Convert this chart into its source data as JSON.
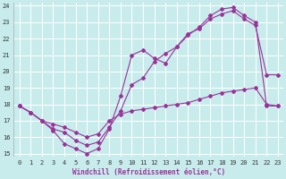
{
  "title": "",
  "xlabel": "Windchill (Refroidissement éolien,°C)",
  "ylabel": "",
  "xlim": [
    -0.5,
    23.5
  ],
  "ylim": [
    14.8,
    24.2
  ],
  "yticks": [
    15,
    16,
    17,
    18,
    19,
    20,
    21,
    22,
    23,
    24
  ],
  "xticks": [
    0,
    1,
    2,
    3,
    4,
    5,
    6,
    7,
    8,
    9,
    10,
    11,
    12,
    13,
    14,
    15,
    16,
    17,
    18,
    19,
    20,
    21,
    22,
    23
  ],
  "bg_color": "#c8ecec",
  "grid_color": "#ffffff",
  "line_color": "#993399",
  "line1_x": [
    0,
    1,
    2,
    3,
    4,
    5,
    6,
    7,
    8,
    9,
    10,
    11,
    12,
    13,
    14,
    15,
    16,
    17,
    18,
    19,
    20,
    21,
    22,
    23
  ],
  "line1_y": [
    17.9,
    17.5,
    17.0,
    16.4,
    15.6,
    15.3,
    15.0,
    15.3,
    16.5,
    18.5,
    21.0,
    21.3,
    20.8,
    20.5,
    21.5,
    22.3,
    22.6,
    23.2,
    23.5,
    23.7,
    23.2,
    22.8,
    19.8,
    19.8
  ],
  "line2_x": [
    0,
    1,
    2,
    3,
    4,
    5,
    6,
    7,
    8,
    9,
    10,
    11,
    12,
    13,
    14,
    15,
    16,
    17,
    18,
    19,
    20,
    21,
    22,
    23
  ],
  "line2_y": [
    17.9,
    17.5,
    17.0,
    16.5,
    16.3,
    15.8,
    15.5,
    15.7,
    16.6,
    17.6,
    19.2,
    19.6,
    20.6,
    21.1,
    21.5,
    22.2,
    22.7,
    23.4,
    23.8,
    23.9,
    23.4,
    23.0,
    17.9,
    17.9
  ],
  "line3_x": [
    0,
    1,
    2,
    3,
    4,
    5,
    6,
    7,
    8,
    9,
    10,
    11,
    12,
    13,
    14,
    15,
    16,
    17,
    18,
    19,
    20,
    21,
    22,
    23
  ],
  "line3_y": [
    17.9,
    17.5,
    17.0,
    16.8,
    16.6,
    16.3,
    16.0,
    16.2,
    17.0,
    17.4,
    17.6,
    17.7,
    17.8,
    17.9,
    18.0,
    18.1,
    18.3,
    18.5,
    18.7,
    18.8,
    18.9,
    19.0,
    18.0,
    17.9
  ],
  "tick_fontsize": 5,
  "xlabel_fontsize": 5.5,
  "marker_size": 2.0,
  "line_width": 0.8
}
